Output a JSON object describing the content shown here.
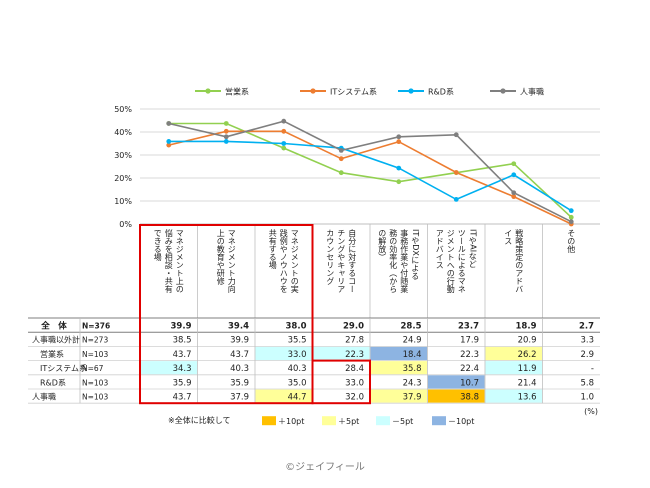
{
  "chart_data": {
    "type": "line",
    "categories": [
      "マネジメント上の悩みを相談・共有できる場",
      "マネジメント力向上の教育や研修",
      "マネジメントの実践例やノウハウを共有する場",
      "自分に対するコーチングやキャリアカウンセリング",
      "ITやDXによる事務作業や付随業務の効率化（からの解放）",
      "ITやAIなどツールによるマネジメントへの行動アドバイス",
      "戦略策定のアドバイス",
      "その他"
    ],
    "category_labels": [
      [
        "マネジメント上の",
        "悩みを相談・共有",
        "できる場"
      ],
      [
        "マネジメント力向",
        "上の教育や研修"
      ],
      [
        "マネジメントの実",
        "践例やノウハウを",
        "共有する場"
      ],
      [
        "自分に対するコー",
        "チングやキャリア",
        "カウンセリング"
      ],
      [
        "ITやDXによる",
        "事務作業や付随業",
        "務の効率化（から",
        "の解放）"
      ],
      [
        "ITやAIなど",
        "ツールによるマネ",
        "ジメントへの行動",
        "アドバイス"
      ],
      [
        "戦略策定のアドバ",
        "イス"
      ],
      [
        "その他"
      ]
    ],
    "ylim": [
      0,
      50
    ],
    "y_ticks": [
      "0%",
      "10%",
      "20%",
      "30%",
      "40%",
      "50%"
    ],
    "grid": true,
    "legend_position": "top",
    "series": [
      {
        "name": "営業系",
        "color": "#92d050",
        "values": [
          43.7,
          43.7,
          33.0,
          22.3,
          18.4,
          22.3,
          26.2,
          2.9
        ]
      },
      {
        "name": "ITシステム系",
        "color": "#ed7d31",
        "values": [
          34.3,
          40.3,
          40.3,
          28.4,
          35.8,
          22.4,
          11.9,
          0.0
        ]
      },
      {
        "name": "R&D系",
        "color": "#00b0f0",
        "values": [
          35.9,
          35.9,
          35.0,
          33.0,
          24.3,
          10.7,
          21.4,
          5.8
        ]
      },
      {
        "name": "人事職",
        "color": "#7f7f7f",
        "values": [
          43.7,
          37.9,
          44.7,
          32.0,
          37.9,
          38.8,
          13.6,
          1.0
        ]
      }
    ],
    "table": {
      "rows": [
        {
          "label": "全　体",
          "n": "N=376",
          "values": [
            "39.9",
            "39.4",
            "38.0",
            "29.0",
            "28.5",
            "23.7",
            "18.9",
            "2.7"
          ],
          "bold": true,
          "indent": false
        },
        {
          "label": "人事職以外計",
          "n": "N=273",
          "values": [
            "38.5",
            "39.9",
            "35.5",
            "27.8",
            "24.9",
            "17.9",
            "20.9",
            "3.3"
          ],
          "bold": false,
          "indent": false
        },
        {
          "label": "営業系",
          "n": "N=103",
          "values": [
            "43.7",
            "43.7",
            "33.0",
            "22.3",
            "18.4",
            "22.3",
            "26.2",
            "2.9"
          ],
          "bold": false,
          "indent": true
        },
        {
          "label": "ITシステム系",
          "n": "N=67",
          "values": [
            "34.3",
            "40.3",
            "40.3",
            "28.4",
            "35.8",
            "22.4",
            "11.9",
            "-"
          ],
          "bold": false,
          "indent": true
        },
        {
          "label": "R&D系",
          "n": "N=103",
          "values": [
            "35.9",
            "35.9",
            "35.0",
            "33.0",
            "24.3",
            "10.7",
            "21.4",
            "5.8"
          ],
          "bold": false,
          "indent": true
        },
        {
          "label": "人事職",
          "n": "N=103",
          "values": [
            "43.7",
            "37.9",
            "44.7",
            "32.0",
            "37.9",
            "38.8",
            "13.6",
            "1.0"
          ],
          "bold": false,
          "indent": false
        }
      ],
      "highlights": [
        [
          "",
          "",
          "",
          "",
          "",
          "",
          "",
          ""
        ],
        [
          "",
          "",
          "",
          "",
          "",
          "",
          "",
          ""
        ],
        [
          "",
          "",
          "cyan",
          "cyan",
          "blue",
          "",
          "yellow",
          ""
        ],
        [
          "cyan",
          "",
          "",
          "",
          "yellow",
          "",
          "cyan",
          ""
        ],
        [
          "",
          "",
          "",
          "",
          "",
          "blue",
          "",
          ""
        ],
        [
          "",
          "",
          "yellow",
          "",
          "yellow",
          "orange",
          "cyan",
          ""
        ]
      ],
      "unit": "(%)"
    },
    "highlight_legend": {
      "title": "※全体に比較して",
      "items": [
        {
          "key": "orange",
          "label": "＋10pt",
          "color": "#ffc000"
        },
        {
          "key": "yellow",
          "label": "＋5pt",
          "color": "#ffff99"
        },
        {
          "key": "cyan",
          "label": "－5pt",
          "color": "#ccffff"
        },
        {
          "key": "blue",
          "label": "－10pt",
          "color": "#8db4e2"
        }
      ]
    }
  },
  "copyright": "©ジェイフィール"
}
